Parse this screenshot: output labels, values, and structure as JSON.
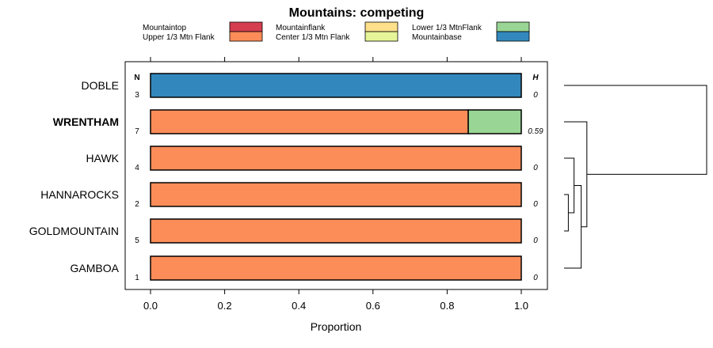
{
  "chart_data": {
    "type": "bar",
    "orientation": "horizontal",
    "stacked": true,
    "title": "Mountains: competing",
    "xlabel": "Proportion",
    "xlim": [
      0,
      1
    ],
    "x_ticks": [
      "0.0",
      "0.2",
      "0.4",
      "0.6",
      "0.8",
      "1.0"
    ],
    "x_tick_values": [
      0,
      0.2,
      0.4,
      0.6,
      0.8,
      1.0
    ],
    "n_header": "N",
    "h_header": "H",
    "legend_position": "top",
    "legend": [
      {
        "name": "Mountaintop",
        "color": "#d53e4f"
      },
      {
        "name": "Upper 1/3 Mtn Flank",
        "color": "#fc8d59"
      },
      {
        "name": "Mountainflank",
        "color": "#fee08b"
      },
      {
        "name": "Center 1/3 Mtn Flank",
        "color": "#e6f598"
      },
      {
        "name": "Lower 1/3 MtnFlank",
        "color": "#99d594"
      },
      {
        "name": "Mountainbase",
        "color": "#3288bd"
      }
    ],
    "categories": [
      {
        "label": "DOBLE",
        "bold": false,
        "n": "3",
        "h": "0",
        "segments": [
          {
            "series": "Mountainbase",
            "value": 1.0
          }
        ]
      },
      {
        "label": "WRENTHAM",
        "bold": true,
        "n": "7",
        "h": "0.59",
        "segments": [
          {
            "series": "Upper 1/3 Mtn Flank",
            "value": 0.857
          },
          {
            "series": "Lower 1/3 MtnFlank",
            "value": 0.143
          }
        ]
      },
      {
        "label": "HAWK",
        "bold": false,
        "n": "4",
        "h": "0",
        "segments": [
          {
            "series": "Upper 1/3 Mtn Flank",
            "value": 1.0
          }
        ]
      },
      {
        "label": "HANNAROCKS",
        "bold": false,
        "n": "2",
        "h": "0",
        "segments": [
          {
            "series": "Upper 1/3 Mtn Flank",
            "value": 1.0
          }
        ]
      },
      {
        "label": "GOLDMOUNTAIN",
        "bold": false,
        "n": "5",
        "h": "0",
        "segments": [
          {
            "series": "Upper 1/3 Mtn Flank",
            "value": 1.0
          }
        ]
      },
      {
        "label": "GAMBOA",
        "bold": false,
        "n": "1",
        "h": "0",
        "segments": [
          {
            "series": "Upper 1/3 Mtn Flank",
            "value": 1.0
          }
        ]
      }
    ],
    "dendrogram": [
      {
        "left": 3,
        "right": 4,
        "height": 0.03
      },
      {
        "left": 2,
        "right": "m0",
        "height": 0.07
      },
      {
        "left": "m1",
        "right": 5,
        "height": 0.12
      },
      {
        "left": 1,
        "right": "m2",
        "height": 0.16
      },
      {
        "left": 0,
        "right": "m3",
        "height": 1.0
      }
    ]
  }
}
